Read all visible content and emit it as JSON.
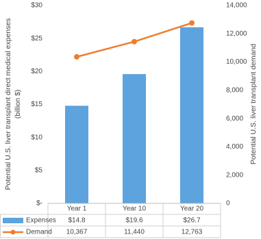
{
  "chart_data": {
    "type": "bar-line",
    "categories": [
      "Year 1",
      "Year 10",
      "Year 20"
    ],
    "series": [
      {
        "name": "Expenses",
        "type": "bar",
        "color": "#5da3dd",
        "values": [
          14.8,
          19.6,
          26.7
        ],
        "value_labels": [
          "$14.8",
          "$19.6",
          "$26.7"
        ]
      },
      {
        "name": "Demand",
        "type": "line",
        "axis": "y2",
        "color": "#ed7d31",
        "values": [
          10367,
          11440,
          12763
        ],
        "value_labels": [
          "10,367",
          "11,440",
          "12,763"
        ]
      }
    ],
    "ylabel": [
      "Potential U.S. liver transplant direct medical expenses",
      "(billion $)"
    ],
    "y2label": "Potential U.S. liver transplant demand",
    "ylim": [
      0,
      30
    ],
    "yticks": [
      {
        "value": 0,
        "label": "$-"
      },
      {
        "value": 5,
        "label": "$5"
      },
      {
        "value": 10,
        "label": "$10"
      },
      {
        "value": 15,
        "label": "$15"
      },
      {
        "value": 20,
        "label": "$20"
      },
      {
        "value": 25,
        "label": "$25"
      },
      {
        "value": 30,
        "label": "$30"
      }
    ],
    "y2lim": [
      0,
      14000
    ],
    "y2ticks": [
      0,
      {
        "value": 2000,
        "label": "2,000"
      },
      {
        "value": 4000,
        "label": "4,000"
      },
      {
        "value": 6000,
        "label": "6,000"
      },
      {
        "value": 8000,
        "label": "8,000"
      },
      {
        "value": 10000,
        "label": "10,000"
      },
      {
        "value": 12000,
        "label": "12,000"
      },
      {
        "value": 14000,
        "label": "14,000"
      }
    ],
    "grid": false
  }
}
